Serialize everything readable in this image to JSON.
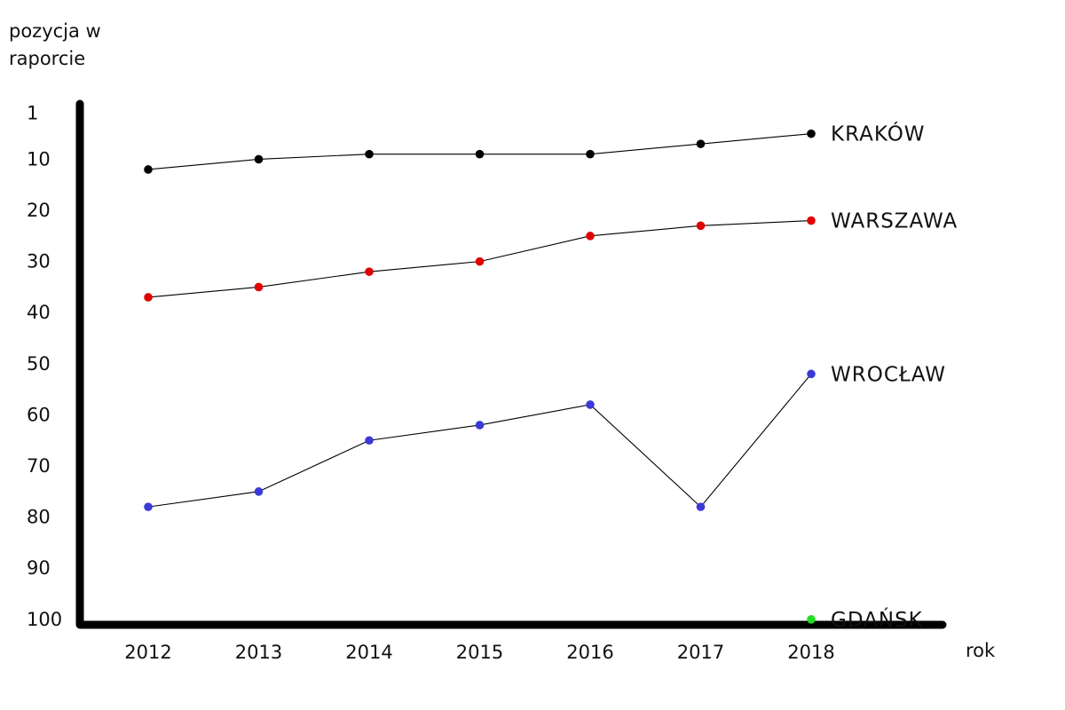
{
  "chart_data": {
    "type": "line",
    "ylabel": "pozycja w raporcie",
    "xlabel": "rok",
    "x": [
      2012,
      2013,
      2014,
      2015,
      2016,
      2017,
      2018
    ],
    "y_ticks": [
      1,
      10,
      20,
      30,
      40,
      50,
      60,
      70,
      80,
      90,
      100
    ],
    "ylim": [
      1,
      100
    ],
    "y_inverted": true,
    "grid": false,
    "series": [
      {
        "name": "KRAKÓW",
        "color": "#000000",
        "values": [
          12,
          10,
          9,
          9,
          9,
          7,
          5
        ]
      },
      {
        "name": "WARSZAWA",
        "color": "#e00000",
        "values": [
          37,
          35,
          32,
          30,
          25,
          23,
          22
        ]
      },
      {
        "name": "WROCŁAW",
        "color": "#3a3ad6",
        "values": [
          78,
          75,
          65,
          62,
          58,
          78,
          52
        ]
      },
      {
        "name": "GDAŃSK",
        "color": "#22dd22",
        "values": [
          null,
          null,
          null,
          null,
          null,
          null,
          100
        ]
      }
    ]
  }
}
